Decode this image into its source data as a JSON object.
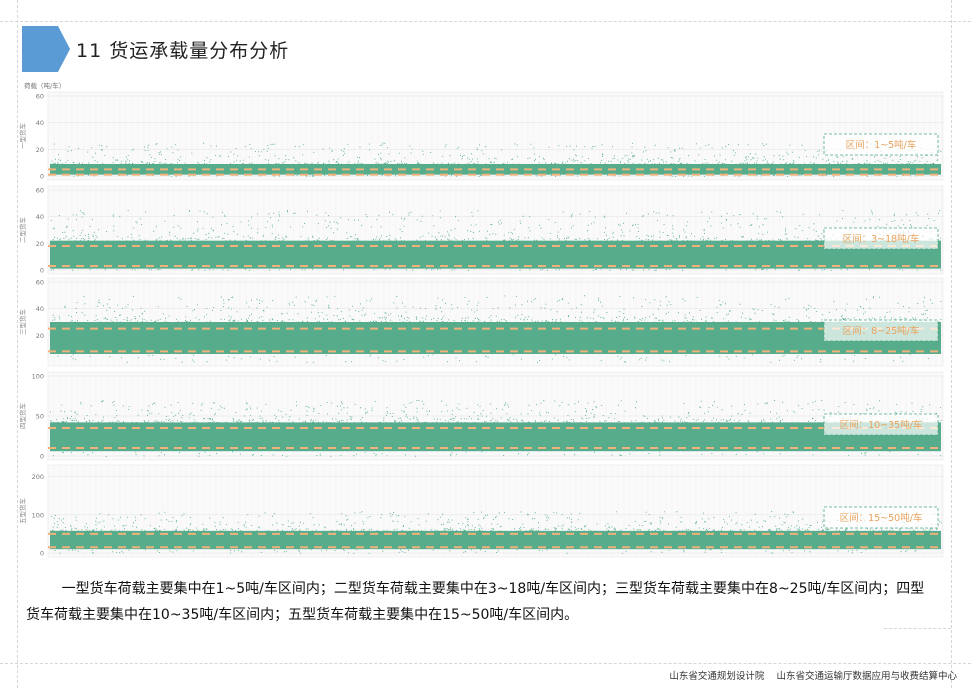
{
  "page": {
    "title": "11  货运承载量分布分析",
    "summary": "        一型货车荷载主要集中在1~5吨/车区间内；二型货车荷载主要集中在3~18吨/车区间内；三型货车荷载主要集中在8~25吨/车区间内；四型货车荷载主要集中在10~35吨/车区间内；五型货车荷载主要集中在15~50吨/车区间内。",
    "footer": "山东省交通规划设计院    山东省交通运输厅数据应用与收费结算中心",
    "accent_color": "#5b9bd5"
  },
  "chart_data": {
    "type": "scatter",
    "ylabel": "荷载（吨/车）",
    "point_color": "#4ea886",
    "band_line_color": "#f0b27a",
    "annotation_color": "#e8a35c",
    "grid": true,
    "panels": [
      {
        "name": "一型货车",
        "ylim": [
          0,
          60
        ],
        "yticks": [
          0,
          20,
          40,
          60
        ],
        "interval": [
          1,
          5
        ],
        "annotation": "区间：1~5吨/车",
        "core": [
          1,
          9
        ],
        "outlier_max": 25
      },
      {
        "name": "二型货车",
        "ylim": [
          0,
          60
        ],
        "yticks": [
          0,
          20,
          40,
          60
        ],
        "interval": [
          3,
          18
        ],
        "annotation": "区间：3~18吨/车",
        "core": [
          1,
          22
        ],
        "outlier_max": 45
      },
      {
        "name": "三型货车",
        "ylim": [
          0,
          60
        ],
        "yticks": [
          20,
          40,
          60
        ],
        "interval": [
          8,
          25
        ],
        "annotation": "区间：8~25吨/车",
        "core": [
          6,
          30
        ],
        "outlier_max": 50
      },
      {
        "name": "四型货车",
        "ylim": [
          0,
          100
        ],
        "yticks": [
          0,
          50,
          100
        ],
        "interval": [
          10,
          35
        ],
        "annotation": "区间：10~35吨/车",
        "core": [
          6,
          42
        ],
        "outlier_max": 70
      },
      {
        "name": "五型货车",
        "ylim": [
          0,
          220
        ],
        "yticks": [
          0,
          100,
          200
        ],
        "interval": [
          15,
          50
        ],
        "annotation": "区间：15~50吨/车",
        "core": [
          10,
          58
        ],
        "outlier_max": 110
      }
    ]
  }
}
